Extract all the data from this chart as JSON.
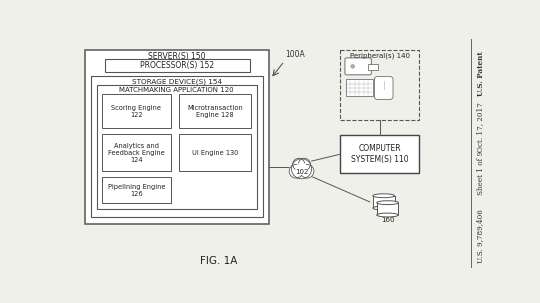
{
  "bg_color": "#f0f0eb",
  "title": "FIG. 1A",
  "right_text_top": "U.S. Patent",
  "right_text_mid": "Oct. 17, 2017",
  "right_text_sheet": "Sheet 1 of 9",
  "right_text_bot": "U.S. 9,789,406",
  "label_100A": "100A",
  "server_label": "SERVER(S) 150",
  "processor_label": "PROCESSOR(S) 152",
  "storage_label": "STORAGE DEVICE(S) 154",
  "matchmaking_label": "MATCHMAKING APPLICATION 120",
  "scoring_label": "Scoring Engine\n122",
  "microtrans_label": "Microtransaction\nEngine 128",
  "analytics_label": "Analytics and\nFeedback Engine\n124",
  "ui_label": "UI Engine 130",
  "pipeline_label": "Pipelining Engine\n126",
  "network_label": "102",
  "computer_label": "COMPUTER\nSYSTEM(S) 110",
  "peripheral_label": "Peripheral(s) 140",
  "db_label": "160"
}
